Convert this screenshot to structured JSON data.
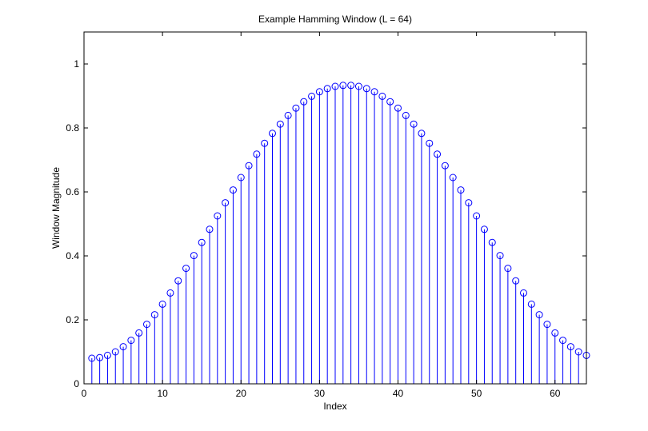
{
  "chart_data": {
    "type": "stem",
    "title": "Example Hamming Window (L = 64)",
    "xlabel": "Index",
    "ylabel": "Window Magnitude",
    "xlim": [
      0,
      64
    ],
    "ylim": [
      0,
      1.1
    ],
    "xticks": [
      0,
      10,
      20,
      30,
      40,
      50,
      60
    ],
    "yticks": [
      0,
      0.2,
      0.4,
      0.6,
      0.8,
      1
    ],
    "ytick_labels": [
      "0",
      "0.2",
      "0.4",
      "0.6",
      "0.8",
      "1"
    ],
    "grid": false,
    "marker": "circle",
    "color": "#0000ff",
    "x": [
      1,
      2,
      3,
      4,
      5,
      6,
      7,
      8,
      9,
      10,
      11,
      12,
      13,
      14,
      15,
      16,
      17,
      18,
      19,
      20,
      21,
      22,
      23,
      24,
      25,
      26,
      27,
      28,
      29,
      30,
      31,
      32,
      33,
      34,
      35,
      36,
      37,
      38,
      39,
      40,
      41,
      42,
      43,
      44,
      45,
      46,
      47,
      48,
      49,
      50,
      51,
      52,
      53,
      54,
      55,
      56,
      57,
      58,
      59,
      60,
      61,
      62,
      63,
      64
    ],
    "values": [
      0.08,
      0.082,
      0.089,
      0.1,
      0.116,
      0.136,
      0.159,
      0.186,
      0.216,
      0.249,
      0.284,
      0.322,
      0.361,
      0.401,
      0.442,
      0.483,
      0.525,
      0.566,
      0.606,
      0.645,
      0.682,
      0.718,
      0.752,
      0.783,
      0.812,
      0.839,
      0.862,
      0.882,
      0.899,
      0.913,
      0.923,
      0.93,
      0.933,
      0.933,
      0.93,
      0.923,
      0.913,
      0.899,
      0.882,
      0.862,
      0.839,
      0.812,
      0.783,
      0.752,
      0.718,
      0.682,
      0.645,
      0.606,
      0.566,
      0.525,
      0.483,
      0.442,
      0.401,
      0.361,
      0.322,
      0.284,
      0.249,
      0.216,
      0.186,
      0.159,
      0.136,
      0.116,
      0.1,
      0.089
    ]
  }
}
